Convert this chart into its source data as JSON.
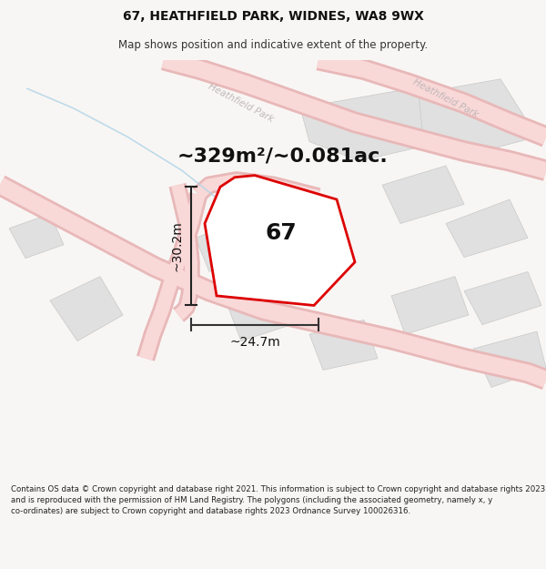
{
  "title": "67, HEATHFIELD PARK, WIDNES, WA8 9WX",
  "subtitle": "Map shows position and indicative extent of the property.",
  "area_text": "~329m²/~0.081ac.",
  "dim_height": "~30.2m",
  "dim_width": "~24.7m",
  "plot_number": "67",
  "footer": "Contains OS data © Crown copyright and database right 2021. This information is subject to Crown copyright and database rights 2023 and is reproduced with the permission of HM Land Registry. The polygons (including the associated geometry, namely x, y co-ordinates) are subject to Crown copyright and database rights 2023 Ordnance Survey 100026316.",
  "bg_color": "#f8f6f4",
  "map_bg": "#f8f8f8",
  "highlight_color": "#dd0000",
  "grey_fill": "#e0e0e0",
  "grey_edge": "#c8c8c8",
  "road_fill": "#f9d8d8",
  "road_edge": "#e8b8b8",
  "street_label_color": "#c0b8b8",
  "blue_line_color": "#b0d4e8",
  "title_fontsize": 10,
  "subtitle_fontsize": 8.5,
  "area_fontsize": 16,
  "label_fontsize": 18,
  "dim_fontsize": 10,
  "footer_fontsize": 6.2
}
